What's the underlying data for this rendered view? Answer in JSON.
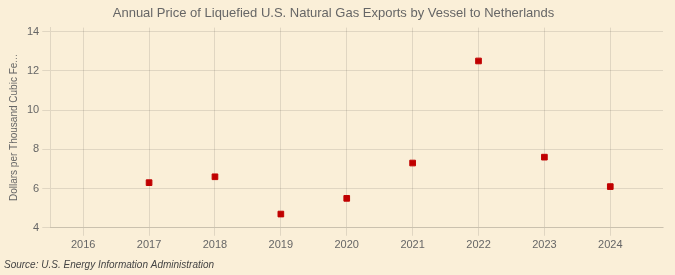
{
  "chart_data": {
    "type": "scatter",
    "title": "Annual Price of Liquefied U.S. Natural Gas Exports by Vessel to Netherlands",
    "ylabel": "Dollars per Thousand Cubic Fe...",
    "source": "Source: U.S. Energy Information Administration",
    "x": [
      2017,
      2018,
      2019,
      2020,
      2021,
      2022,
      2023,
      2024
    ],
    "values": [
      6.3,
      6.6,
      4.7,
      5.5,
      7.3,
      12.5,
      7.6,
      6.1
    ],
    "color": "#c00000",
    "marker": "square",
    "xlim": [
      2015.5,
      2024.8
    ],
    "xticks": [
      2016,
      2017,
      2018,
      2019,
      2020,
      2021,
      2022,
      2023,
      2024
    ],
    "ylim": [
      4,
      14.2
    ],
    "yticks": [
      4,
      6,
      8,
      10,
      12,
      14
    ],
    "grid": true
  }
}
